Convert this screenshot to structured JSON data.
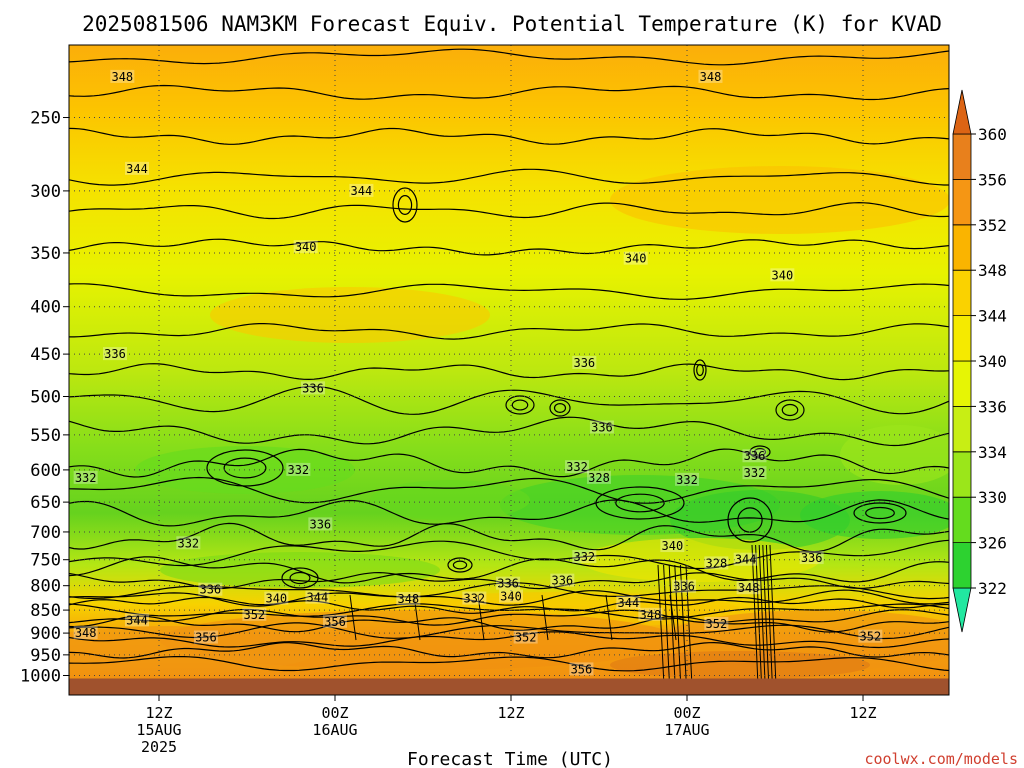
{
  "chart_data": {
    "type": "heatmap",
    "title": "2025081506 NAM3KM Forecast Equiv. Potential Temperature (K) for KVAD",
    "xlabel": "Forecast Time (UTC)",
    "ylabel": "",
    "x_range_hours": [
      -2,
      60
    ],
    "y_range_hPa": [
      1010,
      205
    ],
    "y_ticks": [
      250,
      300,
      350,
      400,
      450,
      500,
      550,
      600,
      650,
      700,
      750,
      800,
      850,
      900,
      950,
      1000
    ],
    "x_ticks": [
      {
        "hour": 4,
        "line1": "12Z",
        "line2": "15AUG",
        "line3": "2025"
      },
      {
        "hour": 16,
        "line1": "00Z",
        "line2": "16AUG",
        "line3": ""
      },
      {
        "hour": 28,
        "line1": "12Z",
        "line2": "",
        "line3": ""
      },
      {
        "hour": 40,
        "line1": "00Z",
        "line2": "17AUG",
        "line3": ""
      },
      {
        "hour": 52,
        "line1": "12Z",
        "line2": "",
        "line3": ""
      }
    ],
    "colorbar": {
      "levels": [
        322,
        326,
        330,
        334,
        336,
        340,
        344,
        348,
        352,
        356,
        360
      ],
      "labels": [
        "322",
        "326",
        "330",
        "334",
        "336",
        "340",
        "344",
        "348",
        "352",
        "356",
        "360"
      ],
      "colors": [
        "#22e8a0",
        "#2dd230",
        "#64dc1e",
        "#9be61a",
        "#c8ee14",
        "#e6f505",
        "#f5ea00",
        "#fad200",
        "#fab400",
        "#f59614",
        "#e8801c",
        "#dc6414"
      ]
    },
    "ground_color": "#a0522d",
    "contour_labels": [
      {
        "text": "348",
        "hour": 1.5,
        "p": 226
      },
      {
        "text": "348",
        "hour": 41.6,
        "p": 226
      },
      {
        "text": "344",
        "hour": 2.5,
        "p": 284
      },
      {
        "text": "344",
        "hour": 17.8,
        "p": 300
      },
      {
        "text": "340",
        "hour": 14.0,
        "p": 345
      },
      {
        "text": "340",
        "hour": 36.5,
        "p": 355
      },
      {
        "text": "340",
        "hour": 46.5,
        "p": 370
      },
      {
        "text": "336",
        "hour": 1.0,
        "p": 450
      },
      {
        "text": "336",
        "hour": 14.5,
        "p": 490
      },
      {
        "text": "336",
        "hour": 33.0,
        "p": 460
      },
      {
        "text": "336",
        "hour": 34.2,
        "p": 540
      },
      {
        "text": "336",
        "hour": 44.6,
        "p": 580
      },
      {
        "text": "332",
        "hour": -1.0,
        "p": 612
      },
      {
        "text": "332",
        "hour": 13.5,
        "p": 600
      },
      {
        "text": "332",
        "hour": 32.5,
        "p": 596
      },
      {
        "text": "332",
        "hour": 40.0,
        "p": 615
      },
      {
        "text": "332",
        "hour": 44.6,
        "p": 605
      },
      {
        "text": "328",
        "hour": 34.0,
        "p": 612
      },
      {
        "text": "336",
        "hour": 15.0,
        "p": 687
      },
      {
        "text": "332",
        "hour": 6.0,
        "p": 720
      },
      {
        "text": "340",
        "hour": 39.0,
        "p": 725
      },
      {
        "text": "332",
        "hour": 33.0,
        "p": 745
      },
      {
        "text": "328",
        "hour": 42.0,
        "p": 757
      },
      {
        "text": "344",
        "hour": 44.0,
        "p": 750
      },
      {
        "text": "336",
        "hour": 48.5,
        "p": 747
      },
      {
        "text": "336",
        "hour": 7.5,
        "p": 808
      },
      {
        "text": "336",
        "hour": 27.8,
        "p": 796
      },
      {
        "text": "336",
        "hour": 31.5,
        "p": 790
      },
      {
        "text": "336",
        "hour": 39.8,
        "p": 802
      },
      {
        "text": "348",
        "hour": 44.2,
        "p": 805
      },
      {
        "text": "340",
        "hour": 12.0,
        "p": 826
      },
      {
        "text": "344",
        "hour": 14.8,
        "p": 824
      },
      {
        "text": "348",
        "hour": 21.0,
        "p": 827
      },
      {
        "text": "332",
        "hour": 25.5,
        "p": 826
      },
      {
        "text": "340",
        "hour": 28.0,
        "p": 822
      },
      {
        "text": "344",
        "hour": 36.0,
        "p": 835
      },
      {
        "text": "348",
        "hour": 37.5,
        "p": 860
      },
      {
        "text": "352",
        "hour": 10.5,
        "p": 860
      },
      {
        "text": "344",
        "hour": 2.5,
        "p": 872
      },
      {
        "text": "356",
        "hour": 16.0,
        "p": 875
      },
      {
        "text": "348",
        "hour": -1.0,
        "p": 900
      },
      {
        "text": "356",
        "hour": 7.2,
        "p": 910
      },
      {
        "text": "352",
        "hour": 29.0,
        "p": 910
      },
      {
        "text": "352",
        "hour": 42.0,
        "p": 880
      },
      {
        "text": "352",
        "hour": 52.5,
        "p": 908
      },
      {
        "text": "356",
        "hour": 32.8,
        "p": 985
      }
    ]
  },
  "credit": "coolwx.com/models"
}
